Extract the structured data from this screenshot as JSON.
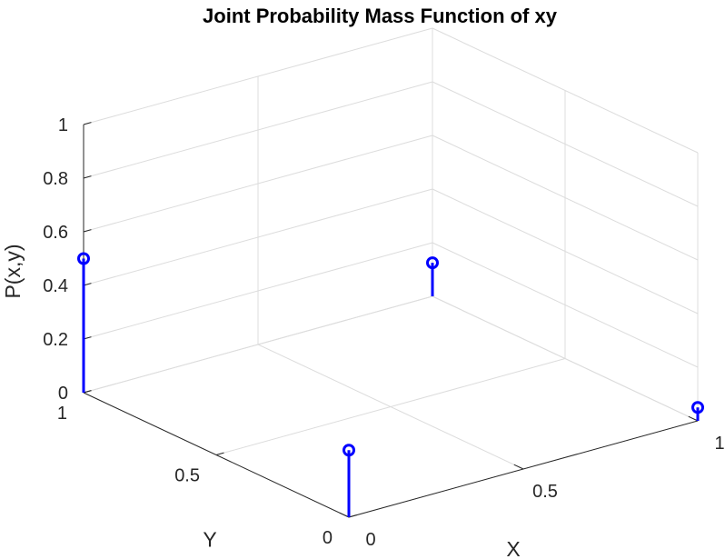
{
  "chart_data": {
    "type": "stem3",
    "title": "Joint Probability Mass Function of xy",
    "xlabel": "X",
    "ylabel": "Y",
    "zlabel": "P(x,y)",
    "xlim": [
      0,
      1
    ],
    "ylim": [
      0,
      1
    ],
    "zlim": [
      0,
      1
    ],
    "x_ticks": [
      "0",
      "0.5",
      "1"
    ],
    "y_ticks": [
      "0",
      "0.5",
      "1"
    ],
    "z_ticks": [
      "0",
      "0.2",
      "0.4",
      "0.6",
      "0.8",
      "1"
    ],
    "grid": true,
    "color": "#0000ff",
    "points": [
      {
        "x": 0,
        "y": 0,
        "z": 0.25
      },
      {
        "x": 1,
        "y": 0,
        "z": 0.05
      },
      {
        "x": 0,
        "y": 1,
        "z": 0.5
      },
      {
        "x": 1,
        "y": 1,
        "z": 0.125
      }
    ]
  }
}
